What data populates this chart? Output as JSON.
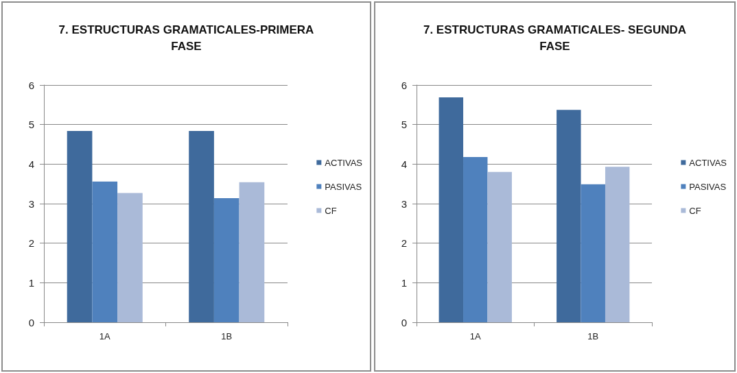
{
  "chart_data": [
    {
      "type": "bar",
      "title": "7. ESTRUCTURAS GRAMATICALES-PRIMERA\nFASE",
      "categories": [
        "1A",
        "1B"
      ],
      "series": [
        {
          "name": "ACTIVAS",
          "color": "#3f6a9c",
          "values": [
            4.84,
            4.84
          ]
        },
        {
          "name": "PASIVAS",
          "color": "#4f81bd",
          "values": [
            3.56,
            3.14
          ]
        },
        {
          "name": "CF",
          "color": "#aabad8",
          "values": [
            3.27,
            3.54
          ]
        }
      ],
      "ylim": [
        0,
        6
      ],
      "yticks": [
        0,
        1,
        2,
        3,
        4,
        5,
        6
      ],
      "grid": "y",
      "legend": "right"
    },
    {
      "type": "bar",
      "title": "7. ESTRUCTURAS GRAMATICALES- SEGUNDA\nFASE",
      "categories": [
        "1A",
        "1B"
      ],
      "series": [
        {
          "name": "ACTIVAS",
          "color": "#3f6a9c",
          "values": [
            5.69,
            5.37
          ]
        },
        {
          "name": "PASIVAS",
          "color": "#4f81bd",
          "values": [
            4.18,
            3.49
          ]
        },
        {
          "name": "CF",
          "color": "#aabad8",
          "values": [
            3.8,
            3.93
          ]
        }
      ],
      "ylim": [
        0,
        6
      ],
      "yticks": [
        0,
        1,
        2,
        3,
        4,
        5,
        6
      ],
      "grid": "y",
      "legend": "right"
    }
  ]
}
